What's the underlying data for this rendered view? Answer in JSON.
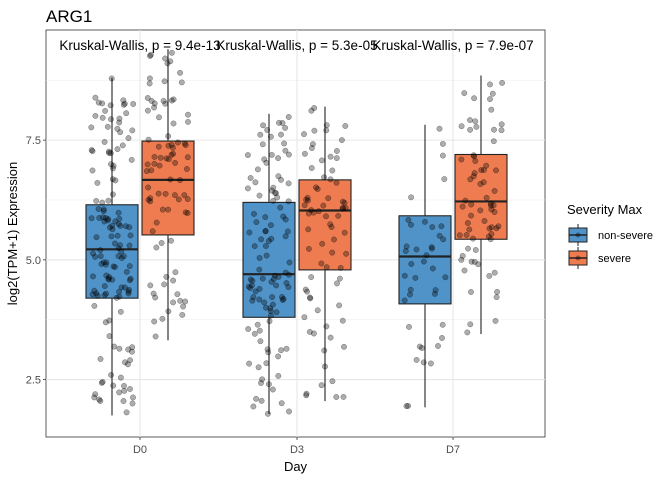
{
  "chart_data": {
    "type": "box",
    "title": "ARG1",
    "xlabel": "Day",
    "ylabel": "log2(TPM+1) Expression",
    "categories": [
      "D0",
      "D3",
      "D7"
    ],
    "ylim": [
      1.3,
      9.8
    ],
    "yticks": [
      2.5,
      5.0,
      7.5
    ],
    "ytick_labels": [
      "2.5",
      "5.0",
      "7.5"
    ],
    "grid": true,
    "legend": {
      "title": "Severity Max",
      "placement": "right"
    },
    "series": [
      {
        "name": "non-severe",
        "color": "#4f93c8",
        "boxes": [
          {
            "category": "D0",
            "min": 1.75,
            "q1": 4.2,
            "median": 5.22,
            "q3": 6.15,
            "max": 8.8,
            "n_points": 140
          },
          {
            "category": "D3",
            "min": 1.78,
            "q1": 3.8,
            "median": 4.7,
            "q3": 6.2,
            "max": 8.05,
            "n_points": 110
          },
          {
            "category": "D7",
            "min": 1.92,
            "q1": 4.08,
            "median": 5.07,
            "q3": 5.92,
            "max": 7.82,
            "n_points": 40
          }
        ]
      },
      {
        "name": "severe",
        "color": "#ef7c50",
        "boxes": [
          {
            "category": "D0",
            "min": 3.32,
            "q1": 5.52,
            "median": 6.67,
            "q3": 7.48,
            "max": 9.4,
            "n_points": 85
          },
          {
            "category": "D3",
            "min": 2.05,
            "q1": 4.79,
            "median": 6.03,
            "q3": 6.67,
            "max": 8.2,
            "n_points": 75
          },
          {
            "category": "D7",
            "min": 3.45,
            "q1": 5.43,
            "median": 6.22,
            "q3": 7.2,
            "max": 8.85,
            "n_points": 70
          }
        ]
      }
    ],
    "annotations": [
      {
        "category": "D0",
        "text": "Kruskal-Wallis, p = 9.4e-13"
      },
      {
        "category": "D3",
        "text": "Kruskal-Wallis, p = 5.3e-05"
      },
      {
        "category": "D7",
        "text": "Kruskal-Wallis, p = 7.9e-07"
      }
    ]
  }
}
